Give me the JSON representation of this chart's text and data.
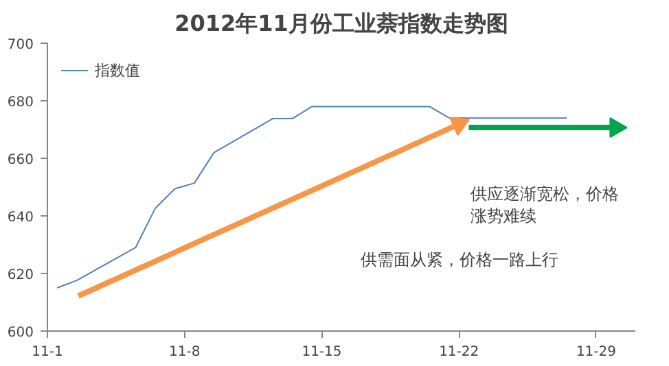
{
  "chart_data": {
    "type": "line",
    "title": "2012年11月份工业萘指数走势图",
    "xlim": [
      "2012-11-01",
      "2012-12-01"
    ],
    "xticks": [
      {
        "value": "2012-11-01",
        "label": "11-1"
      },
      {
        "value": "2012-11-08",
        "label": "11-8"
      },
      {
        "value": "2012-11-15",
        "label": "11-15"
      },
      {
        "value": "2012-11-22",
        "label": "11-22"
      },
      {
        "value": "2012-11-29",
        "label": "11-29"
      }
    ],
    "ylim": [
      600,
      700
    ],
    "yticks": [
      600,
      620,
      640,
      660,
      680,
      700
    ],
    "grid": false,
    "legend": "top left",
    "line_style": "solid",
    "series": [
      {
        "name": "指数值",
        "color": "#4f81bd",
        "x": [
          "2012-11-01T12:00",
          "2012-11-02T12:00",
          "2012-11-05T12:00",
          "2012-11-06T12:00",
          "2012-11-07T12:00",
          "2012-11-08T12:00",
          "2012-11-09T12:00",
          "2012-11-12T12:00",
          "2012-11-13T12:00",
          "2012-11-14T12:00",
          "2012-11-20T12:00",
          "2012-11-21T12:00",
          "2012-11-27T12:00"
        ],
        "values": [
          615,
          617.6,
          629,
          642.6,
          649.4,
          651.4,
          662,
          673.8,
          673.8,
          678,
          678,
          674,
          674
        ]
      },
      {
        "color": "#f79646",
        "marker": "triangle",
        "x": [
          "2012-11-02T14:00",
          "2012-11-22T00:00"
        ],
        "values": [
          612.2,
          671.9
        ]
      },
      {
        "color": "#00a550",
        "marker": "triangle",
        "x": [
          "2012-11-22T12:00",
          "2012-11-30T00:00"
        ],
        "values": [
          670.7,
          670.7
        ]
      }
    ],
    "annotations": [
      "供需面从紧，价格一路上行",
      "供应逐渐宽松，价格涨势难续"
    ]
  }
}
